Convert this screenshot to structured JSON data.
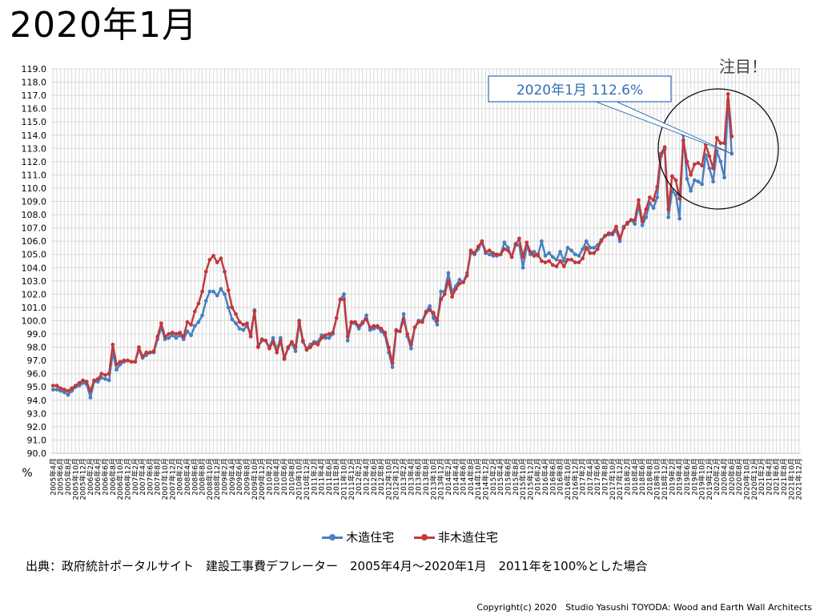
{
  "page": {
    "title": "2020年1月",
    "callout_text": "2020年1月 112.6%",
    "attention_text": "注目！",
    "source": "出典：政府統計ポータルサイト　建設工事費デフレーター　2005年4月～2020年1月　2011年を100%とした場合",
    "copyright": "Copyright(c) 2020　Studio Yasushi TOYODA: Wood and Earth Wall Architects"
  },
  "colors": {
    "wood": "#4a7ebf",
    "nonwood": "#c0393b",
    "grid": "#d9d9d9",
    "callout": "#2f6fb3"
  },
  "chart_data": {
    "type": "line",
    "ylabel": "%",
    "ylim": [
      90.0,
      119.0
    ],
    "ytick_step": 1.0,
    "x_start": "2005年4月",
    "x_end": "2021年12月",
    "x_tick_format": "YYYY年M月",
    "series": [
      {
        "name": "木造住宅",
        "values": [
          94.8,
          94.8,
          94.7,
          94.6,
          94.4,
          94.7,
          95.0,
          95.1,
          95.3,
          95.2,
          94.2,
          95.4,
          95.4,
          95.7,
          95.6,
          95.5,
          97.6,
          96.3,
          96.7,
          96.9,
          97.0,
          96.9,
          96.9,
          97.8,
          97.2,
          97.4,
          97.6,
          97.6,
          98.6,
          99.5,
          98.6,
          98.7,
          98.9,
          98.7,
          98.9,
          98.6,
          99.2,
          98.9,
          99.6,
          99.9,
          100.4,
          101.5,
          102.2,
          102.2,
          101.9,
          102.4,
          102.0,
          101.0,
          100.1,
          99.8,
          99.4,
          99.3,
          99.6,
          99.0,
          100.8,
          98.1,
          98.5,
          98.5,
          98.0,
          98.7,
          97.8,
          98.7,
          97.2,
          97.9,
          98.3,
          97.7,
          99.8,
          98.4,
          97.9,
          98.2,
          98.4,
          98.4,
          98.9,
          98.7,
          98.7,
          99.0,
          100.2,
          101.6,
          102.0,
          98.5,
          99.8,
          99.8,
          99.4,
          99.8,
          100.4,
          99.3,
          99.4,
          99.5,
          99.2,
          98.9,
          97.6,
          96.5,
          99.2,
          99.2,
          100.5,
          98.8,
          97.9,
          99.5,
          100.0,
          100.0,
          100.7,
          101.1,
          100.2,
          99.7,
          102.2,
          102.2,
          103.6,
          102.2,
          102.6,
          103.1,
          102.9,
          103.6,
          105.1,
          105.0,
          105.4,
          105.9,
          105.1,
          105.0,
          104.9,
          104.9,
          105.0,
          105.9,
          105.5,
          104.8,
          105.8,
          105.7,
          104.0,
          105.6,
          105.0,
          105.2,
          104.9,
          106.0,
          104.9,
          105.1,
          104.8,
          104.6,
          105.2,
          104.5,
          105.5,
          105.3,
          105.0,
          104.9,
          105.4,
          106.0,
          105.5,
          105.5,
          105.7,
          106.1,
          106.4,
          106.5,
          106.5,
          106.8,
          106.0,
          107.1,
          107.3,
          107.6,
          107.3,
          108.7,
          107.2,
          107.8,
          108.9,
          108.5,
          109.3,
          112.4,
          112.9,
          107.8,
          109.8,
          109.5,
          107.7,
          114.0,
          110.7,
          109.8,
          110.6,
          110.5,
          110.3,
          112.5,
          111.5,
          110.5,
          112.8,
          112.0,
          110.8,
          116.6,
          112.6
        ],
        "color": "#4a7ebf"
      },
      {
        "name": "非木造住宅",
        "values": [
          95.1,
          95.1,
          94.9,
          94.8,
          94.7,
          94.9,
          95.1,
          95.3,
          95.5,
          95.4,
          94.7,
          95.5,
          95.6,
          96.0,
          95.9,
          96.0,
          98.2,
          96.7,
          96.9,
          97.0,
          97.0,
          96.9,
          96.9,
          98.0,
          97.3,
          97.6,
          97.6,
          97.7,
          98.8,
          99.8,
          98.8,
          99.0,
          99.1,
          99.0,
          99.1,
          98.8,
          99.9,
          99.7,
          100.7,
          101.3,
          102.2,
          103.7,
          104.6,
          104.9,
          104.4,
          104.7,
          103.7,
          102.3,
          101.0,
          100.5,
          99.9,
          99.7,
          99.8,
          98.8,
          100.7,
          98.0,
          98.6,
          98.5,
          97.9,
          98.4,
          97.6,
          98.5,
          97.1,
          98.0,
          98.4,
          98.0,
          100.0,
          98.5,
          97.8,
          98.0,
          98.3,
          98.2,
          98.7,
          98.9,
          99.0,
          99.1,
          100.2,
          101.6,
          101.6,
          98.8,
          99.9,
          99.9,
          99.6,
          99.9,
          100.1,
          99.5,
          99.6,
          99.6,
          99.4,
          99.1,
          98.0,
          96.8,
          99.3,
          99.2,
          100.1,
          99.0,
          98.2,
          99.5,
          99.9,
          99.9,
          100.6,
          100.8,
          100.6,
          100.0,
          101.6,
          102.0,
          103.0,
          101.8,
          102.4,
          102.8,
          102.9,
          103.4,
          105.3,
          105.1,
          105.6,
          106.0,
          105.2,
          105.3,
          105.1,
          105.0,
          105.0,
          105.4,
          105.3,
          104.8,
          105.7,
          106.2,
          104.8,
          105.9,
          105.2,
          104.9,
          105.0,
          104.5,
          104.4,
          104.5,
          104.2,
          104.1,
          104.5,
          104.1,
          104.6,
          104.6,
          104.4,
          104.4,
          104.7,
          105.5,
          105.1,
          105.1,
          105.4,
          106.0,
          106.4,
          106.6,
          106.6,
          107.1,
          106.2,
          107.0,
          107.4,
          107.6,
          107.6,
          109.1,
          107.5,
          108.4,
          109.3,
          109.1,
          110.1,
          112.6,
          113.1,
          108.4,
          110.9,
          110.6,
          109.2,
          113.6,
          112.0,
          111.0,
          111.8,
          111.9,
          111.7,
          113.3,
          112.4,
          111.5,
          113.8,
          113.4,
          113.4,
          117.1,
          113.9
        ],
        "color": "#c0393b"
      }
    ]
  }
}
